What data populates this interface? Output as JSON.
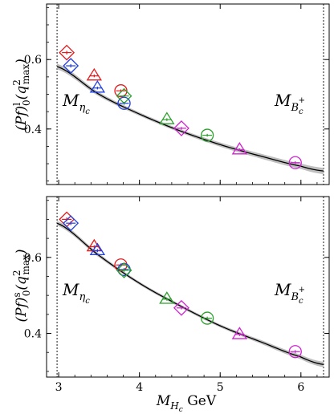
{
  "chart_data": [
    {
      "type": "scatter",
      "panel": "top",
      "ylabel": "(Pf)_0^l(q^2_max)",
      "xlim": [
        2.85,
        6.35
      ],
      "ylim": [
        0.24,
        0.76
      ],
      "yticks": [
        0.4,
        0.6
      ],
      "ytick_labels": [
        "0.4",
        "0.6"
      ],
      "xticks": [
        3,
        4,
        5,
        6
      ],
      "grid": false,
      "vlines": [
        2.98,
        6.28
      ],
      "annotations": [
        {
          "text": "M_ηc",
          "x": 3.1,
          "y": 0.485
        },
        {
          "text": "M_Bc+",
          "x": 5.75,
          "y": 0.485
        }
      ],
      "fit_curve": {
        "x": [
          2.98,
          3.5,
          4.0,
          4.5,
          5.0,
          5.5,
          6.0,
          6.28
        ],
        "y": [
          0.58,
          0.5,
          0.443,
          0.395,
          0.355,
          0.322,
          0.293,
          0.279
        ],
        "band_halfwidth": [
          0.008,
          0.006,
          0.005,
          0.005,
          0.006,
          0.007,
          0.008,
          0.009
        ]
      },
      "series": [
        {
          "color": "#e31a1c",
          "marker": "diamond",
          "x": [
            3.1
          ],
          "y": [
            0.62
          ],
          "err": [
            0.005
          ]
        },
        {
          "color": "#e31a1c",
          "marker": "triangle",
          "x": [
            3.44
          ],
          "y": [
            0.553
          ],
          "err": [
            0.004
          ]
        },
        {
          "color": "#e31a1c",
          "marker": "circle",
          "x": [
            3.77
          ],
          "y": [
            0.51
          ],
          "err": [
            0.004
          ]
        },
        {
          "color": "#1f3fe0",
          "marker": "diamond",
          "x": [
            3.15
          ],
          "y": [
            0.582
          ],
          "err": [
            0.005
          ]
        },
        {
          "color": "#1f3fe0",
          "marker": "triangle",
          "x": [
            3.48
          ],
          "y": [
            0.518
          ],
          "err": [
            0.004
          ]
        },
        {
          "color": "#1f3fe0",
          "marker": "circle",
          "x": [
            3.81
          ],
          "y": [
            0.474
          ],
          "err": [
            0.004
          ]
        },
        {
          "color": "#2ca02c",
          "marker": "diamond",
          "x": [
            3.81
          ],
          "y": [
            0.495
          ],
          "err": [
            0.004
          ]
        },
        {
          "color": "#2ca02c",
          "marker": "triangle",
          "x": [
            4.34
          ],
          "y": [
            0.427
          ],
          "err": [
            0.004
          ]
        },
        {
          "color": "#2ca02c",
          "marker": "circle",
          "x": [
            4.84
          ],
          "y": [
            0.382
          ],
          "err": [
            0.004
          ]
        },
        {
          "color": "#d020d0",
          "marker": "diamond",
          "x": [
            4.52
          ],
          "y": [
            0.402
          ],
          "err": [
            0.004
          ]
        },
        {
          "color": "#d020d0",
          "marker": "triangle",
          "x": [
            5.24
          ],
          "y": [
            0.34
          ],
          "err": [
            0.004
          ]
        },
        {
          "color": "#d020d0",
          "marker": "circle",
          "x": [
            5.93
          ],
          "y": [
            0.303
          ],
          "err": [
            0.004
          ]
        }
      ]
    },
    {
      "type": "scatter",
      "panel": "bottom",
      "ylabel": "(Pf)_0^s(q^2_max)",
      "xlabel": "M_Hc GeV",
      "xlim": [
        2.85,
        6.35
      ],
      "ylim": [
        0.285,
        0.76
      ],
      "yticks": [
        0.4,
        0.6
      ],
      "ytick_labels": [
        "0.4",
        "0.6"
      ],
      "xticks": [
        3,
        4,
        5,
        6
      ],
      "xtick_labels": [
        "3",
        "4",
        "5",
        "6"
      ],
      "grid": false,
      "vlines": [
        2.98,
        6.28
      ],
      "annotations": [
        {
          "text": "M_ηc",
          "x": 3.1,
          "y": 0.48
        },
        {
          "text": "M_Bc+",
          "x": 5.75,
          "y": 0.48
        }
      ],
      "fit_curve": {
        "x": [
          2.98,
          3.5,
          4.0,
          4.5,
          5.0,
          5.5,
          6.0,
          6.28
        ],
        "y": [
          0.69,
          0.605,
          0.532,
          0.473,
          0.42,
          0.378,
          0.338,
          0.318
        ],
        "band_halfwidth": [
          0.006,
          0.005,
          0.004,
          0.004,
          0.004,
          0.005,
          0.006,
          0.007
        ]
      },
      "series": [
        {
          "color": "#e31a1c",
          "marker": "diamond",
          "x": [
            3.1
          ],
          "y": [
            0.7
          ],
          "err": [
            0.005
          ]
        },
        {
          "color": "#e31a1c",
          "marker": "triangle",
          "x": [
            3.44
          ],
          "y": [
            0.628
          ],
          "err": [
            0.004
          ]
        },
        {
          "color": "#e31a1c",
          "marker": "circle",
          "x": [
            3.77
          ],
          "y": [
            0.58
          ],
          "err": [
            0.004
          ]
        },
        {
          "color": "#1f3fe0",
          "marker": "diamond",
          "x": [
            3.15
          ],
          "y": [
            0.69
          ],
          "err": [
            0.005
          ]
        },
        {
          "color": "#1f3fe0",
          "marker": "triangle",
          "x": [
            3.48
          ],
          "y": [
            0.618
          ],
          "err": [
            0.004
          ]
        },
        {
          "color": "#1f3fe0",
          "marker": "circle",
          "x": [
            3.81
          ],
          "y": [
            0.568
          ],
          "err": [
            0.004
          ]
        },
        {
          "color": "#2ca02c",
          "marker": "diamond",
          "x": [
            3.81
          ],
          "y": [
            0.566
          ],
          "err": [
            0.004
          ]
        },
        {
          "color": "#2ca02c",
          "marker": "triangle",
          "x": [
            4.34
          ],
          "y": [
            0.49
          ],
          "err": [
            0.004
          ]
        },
        {
          "color": "#2ca02c",
          "marker": "circle",
          "x": [
            4.84
          ],
          "y": [
            0.44
          ],
          "err": [
            0.004
          ]
        },
        {
          "color": "#d020d0",
          "marker": "diamond",
          "x": [
            4.52
          ],
          "y": [
            0.467
          ],
          "err": [
            0.004
          ]
        },
        {
          "color": "#d020d0",
          "marker": "triangle",
          "x": [
            5.24
          ],
          "y": [
            0.397
          ],
          "err": [
            0.004
          ]
        },
        {
          "color": "#d020d0",
          "marker": "circle",
          "x": [
            5.93
          ],
          "y": [
            0.352
          ],
          "err": [
            0.004
          ]
        }
      ]
    }
  ],
  "colors": {
    "curve": "#000000",
    "band": "#b8b8b8"
  }
}
